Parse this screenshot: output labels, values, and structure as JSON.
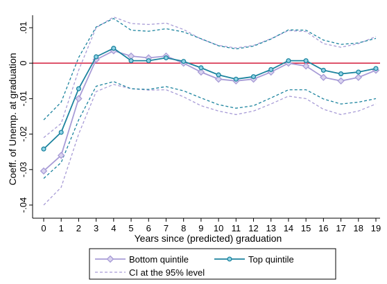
{
  "chart_data": {
    "type": "line",
    "title": "",
    "xlabel": "Years since (predicted) graduation",
    "ylabel": "Coeff. of Unemp. at graduation",
    "x": [
      0,
      1,
      2,
      3,
      4,
      5,
      6,
      7,
      8,
      9,
      10,
      11,
      12,
      13,
      14,
      15,
      16,
      17,
      18,
      19
    ],
    "xticks": [
      "0",
      "1",
      "2",
      "3",
      "4",
      "5",
      "6",
      "7",
      "8",
      "9",
      "10",
      "11",
      "12",
      "13",
      "14",
      "15",
      "16",
      "17",
      "18",
      "19"
    ],
    "yticks": [
      {
        "value": 0.01,
        "label": ".01"
      },
      {
        "value": 0,
        "label": "0"
      },
      {
        "value": -0.01,
        "label": "-.01"
      },
      {
        "value": -0.02,
        "label": "-.02"
      },
      {
        "value": -0.03,
        "label": "-.03"
      },
      {
        "value": -0.04,
        "label": "-.04"
      }
    ],
    "xlim": [
      -0.5,
      19.3
    ],
    "ylim": [
      -0.0415,
      0.0125
    ],
    "reference_line": {
      "y": 0,
      "color": "#d62e4a"
    },
    "series": [
      {
        "name": "Bottom quintile",
        "color": "#a79bd6",
        "marker": "diamond",
        "values": [
          -0.0304,
          -0.026,
          -0.01,
          0.001,
          0.0035,
          0.002,
          0.0015,
          0.002,
          0.0,
          -0.0025,
          -0.0045,
          -0.005,
          -0.0045,
          -0.0025,
          0.0,
          -0.0008,
          -0.004,
          -0.005,
          -0.004,
          -0.002
        ],
        "ci_lower": [
          -0.04,
          -0.035,
          -0.02,
          -0.008,
          -0.006,
          -0.0072,
          -0.0076,
          -0.0075,
          -0.0095,
          -0.012,
          -0.0135,
          -0.0145,
          -0.0135,
          -0.0115,
          -0.0093,
          -0.01,
          -0.013,
          -0.0145,
          -0.0135,
          -0.0115
        ],
        "ci_upper": [
          -0.021,
          -0.017,
          -0.002,
          0.01,
          0.013,
          0.0112,
          0.0109,
          0.0113,
          0.0095,
          0.0068,
          0.005,
          0.0043,
          0.005,
          0.0069,
          0.0092,
          0.0089,
          0.0055,
          0.0045,
          0.0055,
          0.0075
        ]
      },
      {
        "name": "Top quintile",
        "color": "#1b839e",
        "marker": "circle",
        "values": [
          -0.0242,
          -0.0195,
          -0.0072,
          0.0018,
          0.0042,
          0.0007,
          0.0007,
          0.0015,
          0.0005,
          -0.0013,
          -0.0033,
          -0.0045,
          -0.0038,
          -0.0018,
          0.0007,
          0.0007,
          -0.002,
          -0.003,
          -0.0025,
          -0.0015
        ],
        "ci_lower": [
          -0.0325,
          -0.028,
          -0.016,
          -0.0065,
          -0.0052,
          -0.0072,
          -0.0074,
          -0.0066,
          -0.0078,
          -0.0098,
          -0.0117,
          -0.0127,
          -0.012,
          -0.0098,
          -0.0075,
          -0.0075,
          -0.0101,
          -0.0115,
          -0.011,
          -0.01
        ],
        "ci_upper": [
          -0.016,
          -0.011,
          0.0016,
          0.0102,
          0.0126,
          0.0093,
          0.009,
          0.0097,
          0.0088,
          0.0069,
          0.0049,
          0.004,
          0.0048,
          0.0068,
          0.0094,
          0.0093,
          0.0065,
          0.0053,
          0.0057,
          0.007
        ]
      }
    ],
    "legend": {
      "placement": "bottom",
      "entries": [
        "Bottom quintile",
        "Top quintile",
        "CI at the 95% level"
      ]
    }
  }
}
